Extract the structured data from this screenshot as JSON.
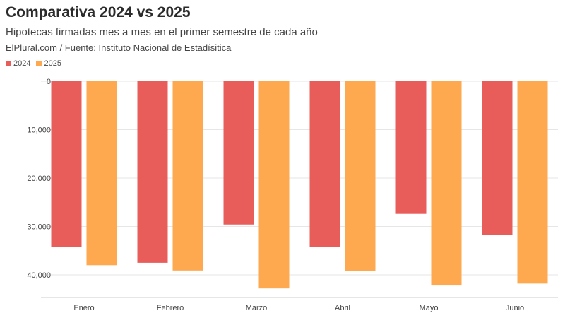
{
  "header": {
    "title": "Comparativa 2024 vs 2025",
    "subtitle": "Hipotecas firmadas mes a mes en el primer semestre de cada año",
    "source": "ElPlural.com / Fuente: Instituto Nacional de Estadísitica"
  },
  "colors": {
    "s2024": "#e85c5a",
    "s2025": "#fea84f",
    "grid": "#e6e6e6",
    "axis": "#cccccc"
  },
  "chart_data": {
    "type": "bar",
    "categories": [
      "Enero",
      "Febrero",
      "Marzo",
      "Abril",
      "Mayo",
      "Junio"
    ],
    "series": [
      {
        "name": "2024",
        "values": [
          34300,
          37500,
          29600,
          34300,
          27400,
          31800
        ]
      },
      {
        "name": "2025",
        "values": [
          38000,
          39100,
          42800,
          39200,
          42200,
          41800
        ]
      }
    ],
    "yticks": [
      "0",
      "10,000",
      "20,000",
      "30,000",
      "40,000"
    ],
    "ytick_values": [
      0,
      10000,
      20000,
      30000,
      40000
    ],
    "ylim": [
      0,
      45000
    ],
    "y_inverted": true,
    "legend": "top-left",
    "grid": true
  }
}
